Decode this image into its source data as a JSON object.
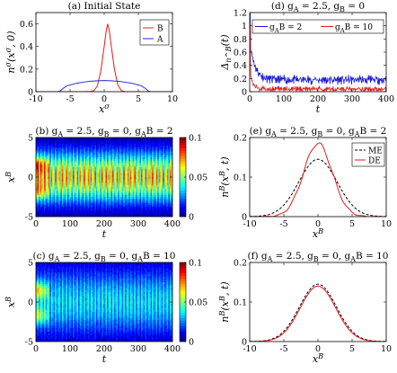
{
  "chart_data": [
    {
      "id": "a",
      "type": "line",
      "title": "(a) Initial State",
      "xlabel": "x^σ",
      "ylabel": "n^σ(x^σ, 0)",
      "xlim": [
        -10,
        10
      ],
      "ylim": [
        0,
        0.7
      ],
      "xticks": [
        -10,
        -5,
        0,
        5,
        10
      ],
      "yticks": [
        0,
        0.2,
        0.4,
        0.6
      ],
      "ytick_labels": [
        "0",
        "0.2",
        "0.4",
        "0.6"
      ],
      "legend": "top-right",
      "series": [
        {
          "name": "B",
          "color": "#e41a1c",
          "x": [
            -10,
            -3,
            -2,
            -1.5,
            -1,
            -0.5,
            0,
            0.25,
            0.5,
            0.75,
            1,
            1.5,
            2,
            2.5,
            3,
            10
          ],
          "y": [
            0,
            0,
            0.002,
            0.01,
            0.05,
            0.18,
            0.4,
            0.52,
            0.6,
            0.54,
            0.42,
            0.2,
            0.06,
            0.01,
            0,
            0
          ]
        },
        {
          "name": "A",
          "color": "#2b2bd0",
          "x": [
            -10,
            -6.8,
            -6.5,
            -6,
            -5.5,
            -5,
            -4,
            -3,
            -2,
            -1,
            0,
            1,
            2,
            3,
            4,
            5,
            5.5,
            6,
            6.5,
            6.8,
            10
          ],
          "y": [
            0,
            0,
            0.005,
            0.03,
            0.05,
            0.06,
            0.075,
            0.085,
            0.092,
            0.096,
            0.098,
            0.096,
            0.092,
            0.085,
            0.075,
            0.06,
            0.05,
            0.03,
            0.005,
            0,
            0
          ]
        }
      ]
    },
    {
      "id": "d",
      "type": "line",
      "title": "(d) g_A = 2.5, g_B = 0",
      "xlabel": "t",
      "ylabel": "Δ_{n^B}(t)",
      "xlim": [
        0,
        400
      ],
      "ylim": [
        0,
        1.2
      ],
      "xticks": [
        0,
        100,
        200,
        300,
        400
      ],
      "yticks": [
        0,
        0.2,
        0.4,
        0.6,
        0.8,
        1,
        1.2
      ],
      "ytick_labels": [
        "0",
        "0.2",
        "0.4",
        "0.6",
        "0.8",
        "1",
        "1.2"
      ],
      "legend": "top",
      "series": [
        {
          "name": "g_AB = 2",
          "color": "#1a1ad6",
          "base": 0.18,
          "noise": 0.05,
          "peak": 0.6,
          "decay": 15
        },
        {
          "name": "g_AB = 10",
          "color": "#e41a1c",
          "base": 0.04,
          "noise": 0.03,
          "peak": 0.3,
          "decay": 8
        }
      ]
    },
    {
      "id": "b",
      "type": "heatmap",
      "title": "(b) g_A = 2.5, g_B = 0, g_AB = 2",
      "xlabel": "t",
      "ylabel": "x^B",
      "xlim": [
        0,
        400
      ],
      "ylim": [
        -5,
        5
      ],
      "xticks": [
        0,
        100,
        200,
        300,
        400
      ],
      "yticks": [
        -5,
        0,
        5
      ],
      "clim": [
        0,
        0.1
      ],
      "colorbar_ticks": [
        "0",
        "0.05",
        "0.1"
      ],
      "width": 2.2,
      "amp": 0.085
    },
    {
      "id": "e",
      "type": "line",
      "title": "(e) g_A = 2.5, g_B = 0, g_AB = 2",
      "xlabel": "x^B",
      "ylabel": "n^B(x^B, t)",
      "xlim": [
        -10,
        10
      ],
      "ylim": [
        0,
        0.2
      ],
      "xticks": [
        -10,
        -5,
        0,
        5,
        10
      ],
      "yticks": [
        0,
        0.1,
        0.2
      ],
      "ytick_labels": [
        "0",
        "0.1",
        "0.2"
      ],
      "legend": "top-right",
      "series": [
        {
          "name": "ME",
          "color": "#000000",
          "dash": "3,2",
          "amp": 0.145,
          "sigma": 2.8
        },
        {
          "name": "DE",
          "color": "#e41a1c",
          "amp": 0.185,
          "sigma": 2.1
        }
      ]
    },
    {
      "id": "c",
      "type": "heatmap",
      "title": "(c) g_A = 2.5, g_B = 0, g_AB = 10",
      "xlabel": "t",
      "ylabel": "x^B",
      "xlim": [
        0,
        400
      ],
      "ylim": [
        -5,
        5
      ],
      "xticks": [
        0,
        100,
        200,
        300,
        400
      ],
      "yticks": [
        -5,
        0,
        5
      ],
      "clim": [
        0,
        0.1
      ],
      "colorbar_ticks": [
        "0",
        "0.05",
        "0.1"
      ],
      "width": 3.0,
      "amp": 0.045
    },
    {
      "id": "f",
      "type": "line",
      "title": "(f) g_A = 2.5, g_B = 0, g_AB = 10",
      "xlabel": "x^B",
      "ylabel": "n^B(x^B, t)",
      "xlim": [
        -10,
        10
      ],
      "ylim": [
        0,
        0.2
      ],
      "xticks": [
        -10,
        -5,
        0,
        5,
        10
      ],
      "yticks": [
        0,
        0.1,
        0.2
      ],
      "ytick_labels": [
        "0",
        "0.1",
        "0.2"
      ],
      "legend": "none",
      "series": [
        {
          "name": "ME",
          "color": "#000000",
          "dash": "3,2",
          "amp": 0.145,
          "sigma": 2.7
        },
        {
          "name": "DE",
          "color": "#e41a1c",
          "amp": 0.14,
          "sigma": 2.6
        }
      ]
    }
  ]
}
